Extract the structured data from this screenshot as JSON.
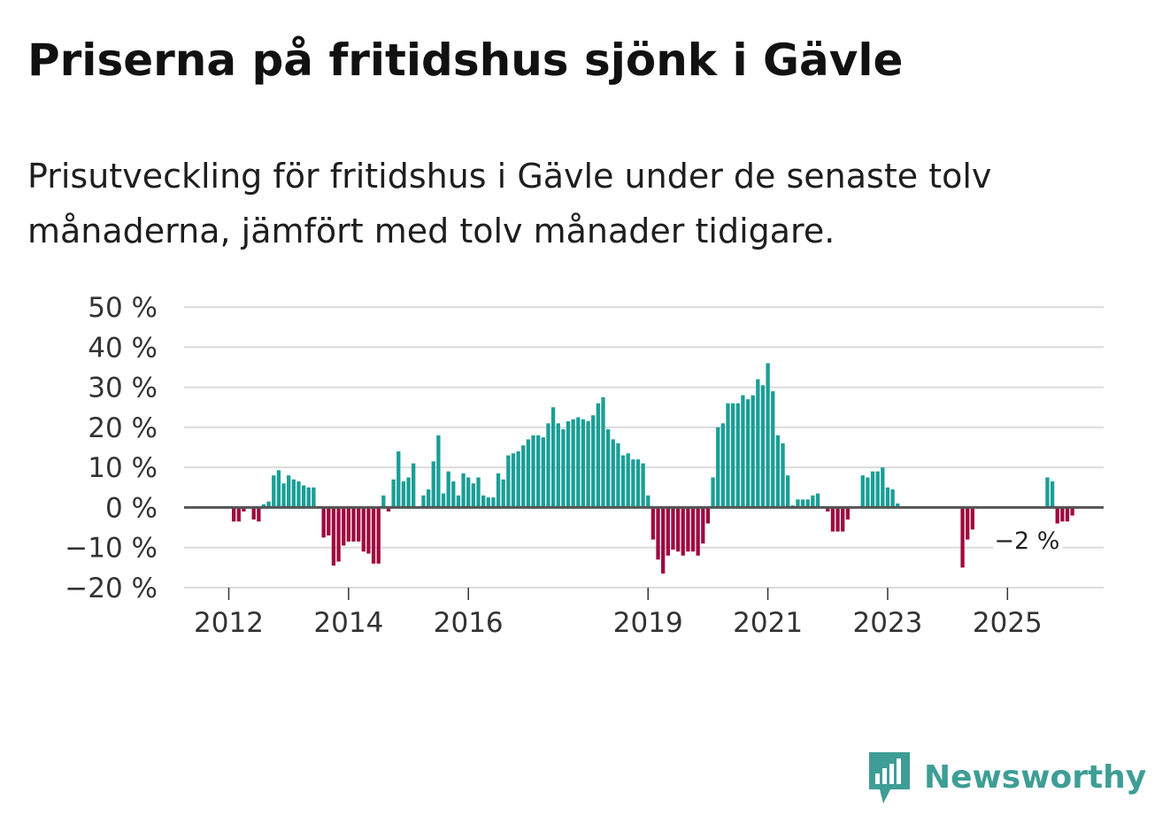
{
  "title": "Priserna på fritidshus sjönk i Gävle",
  "subtitle": "Prisutveckling för fritidshus i Gävle under de senaste tolv månaderna, jämfört med tolv månader tidigare.",
  "brand": {
    "name": "Newsworthy",
    "icon": "newsworthy-logo-icon"
  },
  "colors": {
    "positive": "#1a9e96",
    "negative": "#9e0a3f",
    "grid": "#dcdcdc",
    "zero": "#555555",
    "brand": "#3e9e95"
  },
  "chart_data": {
    "type": "bar",
    "title": "Priserna på fritidshus sjönk i Gävle",
    "xlabel": "",
    "ylabel": "",
    "ylim": [
      -20,
      50
    ],
    "yticks": [
      50,
      40,
      30,
      20,
      10,
      0,
      -10,
      -20
    ],
    "ytick_labels": [
      "50 %",
      "40 %",
      "30 %",
      "20 %",
      "10 %",
      "0 %",
      "−10 %",
      "−20 %"
    ],
    "xticks": [
      {
        "label": "2012",
        "index": 8
      },
      {
        "label": "2014",
        "index": 32
      },
      {
        "label": "2016",
        "index": 56
      },
      {
        "label": "2019",
        "index": 92
      },
      {
        "label": "2021",
        "index": 116
      },
      {
        "label": "2023",
        "index": 140
      },
      {
        "label": "2025",
        "index": 164
      }
    ],
    "annotation": {
      "text": "−2 %",
      "index": 175
    },
    "start": "2011-05",
    "frequency": "monthly",
    "values": [
      0,
      0,
      0,
      0,
      0,
      0,
      0,
      0,
      0,
      -3.5,
      -3.5,
      -1,
      0,
      -3,
      -3.5,
      0.8,
      1.5,
      8,
      9.3,
      6,
      8,
      7,
      6.5,
      5.5,
      5,
      5,
      0,
      -7.5,
      -7,
      -14.5,
      -13.5,
      -9.5,
      -8.5,
      -8.5,
      -8.5,
      -11,
      -11.5,
      -14,
      -14,
      3,
      -1,
      7,
      14,
      6.5,
      7.5,
      11,
      0,
      3,
      4.5,
      11.5,
      18,
      3.5,
      9,
      6.5,
      3,
      8.5,
      7.5,
      6,
      7.5,
      3,
      2.5,
      2.5,
      8.5,
      7,
      13,
      13.5,
      14,
      15.5,
      17,
      18,
      18,
      17.5,
      21,
      25,
      21,
      19.5,
      21.5,
      22,
      22.5,
      22,
      21.5,
      23,
      26,
      27.5,
      19.5,
      17,
      16,
      13,
      13.5,
      12,
      12,
      11,
      3,
      -8,
      -13,
      -16.5,
      -12,
      -10.5,
      -11,
      -12,
      -11,
      -11,
      -12,
      -9,
      -4,
      7.5,
      20,
      21,
      26,
      26,
      26,
      28,
      27,
      28,
      32,
      30.5,
      36,
      29,
      18,
      16,
      8,
      0.5,
      2,
      2,
      2,
      3,
      3.5,
      0,
      -1,
      -6,
      -6,
      -6,
      -3,
      0,
      0,
      8,
      7.5,
      9,
      9,
      10,
      5,
      4.5,
      1,
      0,
      0,
      0,
      0,
      0,
      0,
      0,
      0,
      0,
      0,
      0,
      0,
      -15,
      -8,
      -5.5,
      0,
      0,
      0,
      0,
      0,
      0,
      0,
      0,
      0,
      0,
      0,
      0,
      0,
      0,
      7.5,
      6.5,
      -4,
      -3.5,
      -3.5,
      -2,
      0,
      0,
      0,
      0,
      0,
      0
    ]
  }
}
